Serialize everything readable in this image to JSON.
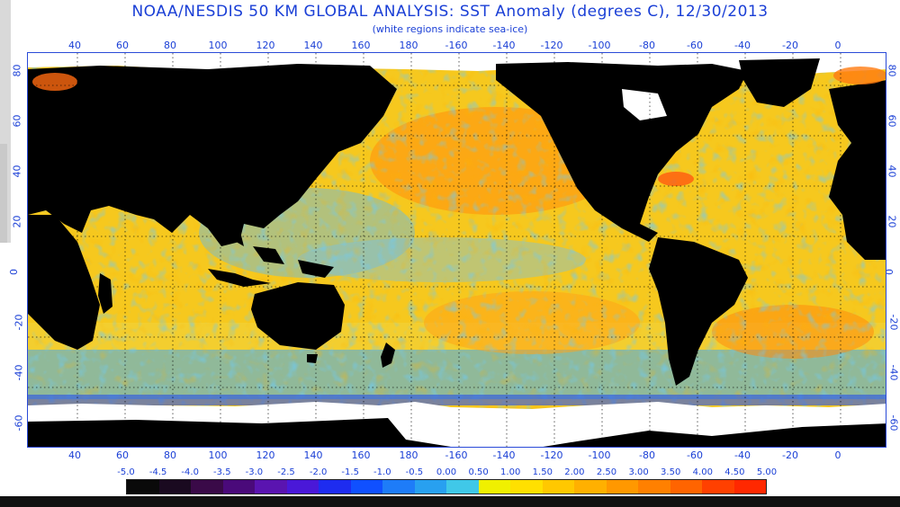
{
  "title": "NOAA/NESDIS 50 KM GLOBAL ANALYSIS: SST Anomaly (degrees C), 12/30/2013",
  "subtitle": "(white regions indicate sea-ice)",
  "longitude_labels": [
    "40",
    "60",
    "80",
    "100",
    "120",
    "140",
    "160",
    "180",
    "-160",
    "-140",
    "-120",
    "-100",
    "-80",
    "-60",
    "-40",
    "-20",
    "0"
  ],
  "latitude_labels": [
    "80",
    "60",
    "40",
    "20",
    "0",
    "-20",
    "-40",
    "-60"
  ],
  "legend": {
    "labels": [
      "-5.0",
      "-4.5",
      "-4.0",
      "-3.5",
      "-3.0",
      "-2.5",
      "-2.0",
      "-1.5",
      "-1.0",
      "-0.5",
      "0.00",
      "0.50",
      "1.00",
      "1.50",
      "2.00",
      "2.50",
      "3.00",
      "3.50",
      "4.00",
      "4.50",
      "5.00"
    ],
    "colors": [
      "#0a0a0a",
      "#1a0a20",
      "#3a0a48",
      "#4a0a7a",
      "#5a14b0",
      "#4a18d8",
      "#1e2cf0",
      "#1050ff",
      "#1e7cf8",
      "#28a0f0",
      "#40c8e8",
      "#f0f000",
      "#ffe000",
      "#ffc800",
      "#ffb000",
      "#ff9800",
      "#ff8000",
      "#ff6400",
      "#ff4000",
      "#ff2800"
    ]
  },
  "colors": {
    "label_blue": "#1a3fd6",
    "land": "#000000",
    "sea_ice": "#ffffff"
  }
}
